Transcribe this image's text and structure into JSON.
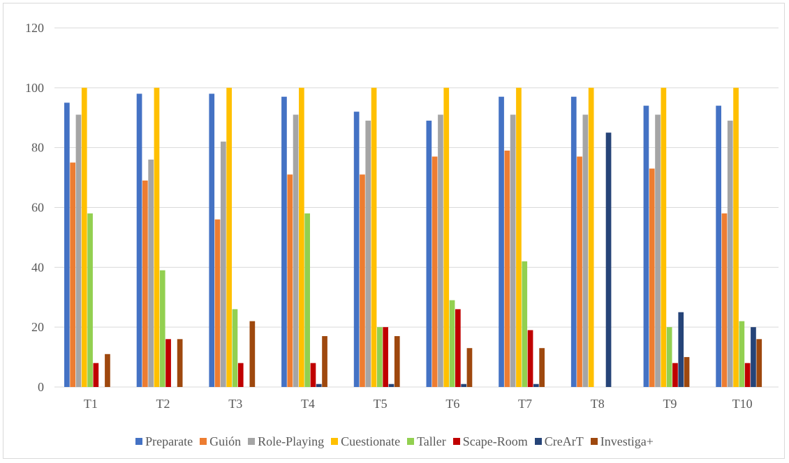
{
  "chart_data": {
    "type": "bar",
    "categories": [
      "T1",
      "T2",
      "T3",
      "T4",
      "T5",
      "T6",
      "T7",
      "T8",
      "T9",
      "T10"
    ],
    "series": [
      {
        "name": "Preparate",
        "color": "#4472c4",
        "values": [
          95,
          98,
          98,
          97,
          92,
          89,
          97,
          97,
          94,
          94
        ]
      },
      {
        "name": "Guión",
        "color": "#ed7d31",
        "values": [
          75,
          69,
          56,
          71,
          71,
          77,
          79,
          77,
          73,
          58
        ]
      },
      {
        "name": "Role-Playing",
        "color": "#a5a5a5",
        "values": [
          91,
          76,
          82,
          91,
          89,
          91,
          91,
          91,
          91,
          89
        ]
      },
      {
        "name": "Cuestionate",
        "color": "#ffc000",
        "values": [
          100,
          100,
          100,
          100,
          100,
          100,
          100,
          100,
          100,
          100
        ]
      },
      {
        "name": "Taller",
        "color": "#92d050",
        "values": [
          58,
          39,
          26,
          58,
          20,
          29,
          42,
          0,
          20,
          22
        ]
      },
      {
        "name": "Scape-Room",
        "color": "#c00000",
        "values": [
          8,
          16,
          8,
          8,
          20,
          26,
          19,
          0,
          8,
          8
        ]
      },
      {
        "name": "CreArT",
        "color": "#264478",
        "values": [
          0,
          0,
          0,
          1,
          1,
          1,
          1,
          85,
          25,
          20
        ]
      },
      {
        "name": "Investiga+",
        "color": "#9e480e",
        "values": [
          11,
          16,
          22,
          17,
          17,
          13,
          13,
          0,
          10,
          16
        ]
      }
    ],
    "ylim": [
      0,
      120
    ],
    "yticks": [
      0,
      20,
      40,
      60,
      80,
      100,
      120
    ],
    "grid": true,
    "legend_position": "bottom",
    "title": "",
    "xlabel": "",
    "ylabel": ""
  }
}
